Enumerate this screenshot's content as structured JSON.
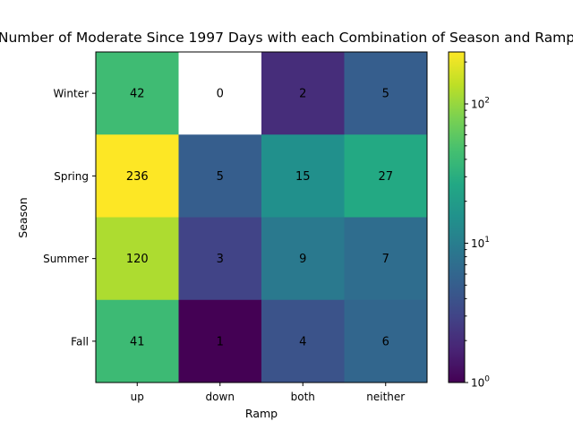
{
  "chart_data": {
    "type": "heatmap",
    "title": "Number of Moderate Since 1997 Days with each Combination of Season and Ramp",
    "xlabel": "Ramp",
    "ylabel": "Season",
    "x_categories": [
      "up",
      "down",
      "both",
      "neither"
    ],
    "y_categories": [
      "Winter",
      "Spring",
      "Summer",
      "Fall"
    ],
    "values": [
      [
        42,
        0,
        2,
        5
      ],
      [
        236,
        5,
        15,
        27
      ],
      [
        120,
        3,
        9,
        7
      ],
      [
        41,
        1,
        4,
        6
      ]
    ],
    "color_scale": "log",
    "colormap": "viridis",
    "zero_color": "#ffffff",
    "vmin": 1,
    "vmax": 236,
    "colorbar": {
      "major_ticks": [
        1,
        10,
        100
      ],
      "major_tick_labels": [
        "10^0",
        "10^1",
        "10^2"
      ],
      "minor_ticks": [
        2,
        3,
        4,
        5,
        6,
        7,
        8,
        9,
        20,
        30,
        40,
        50,
        60,
        70,
        80,
        90,
        200
      ]
    }
  }
}
